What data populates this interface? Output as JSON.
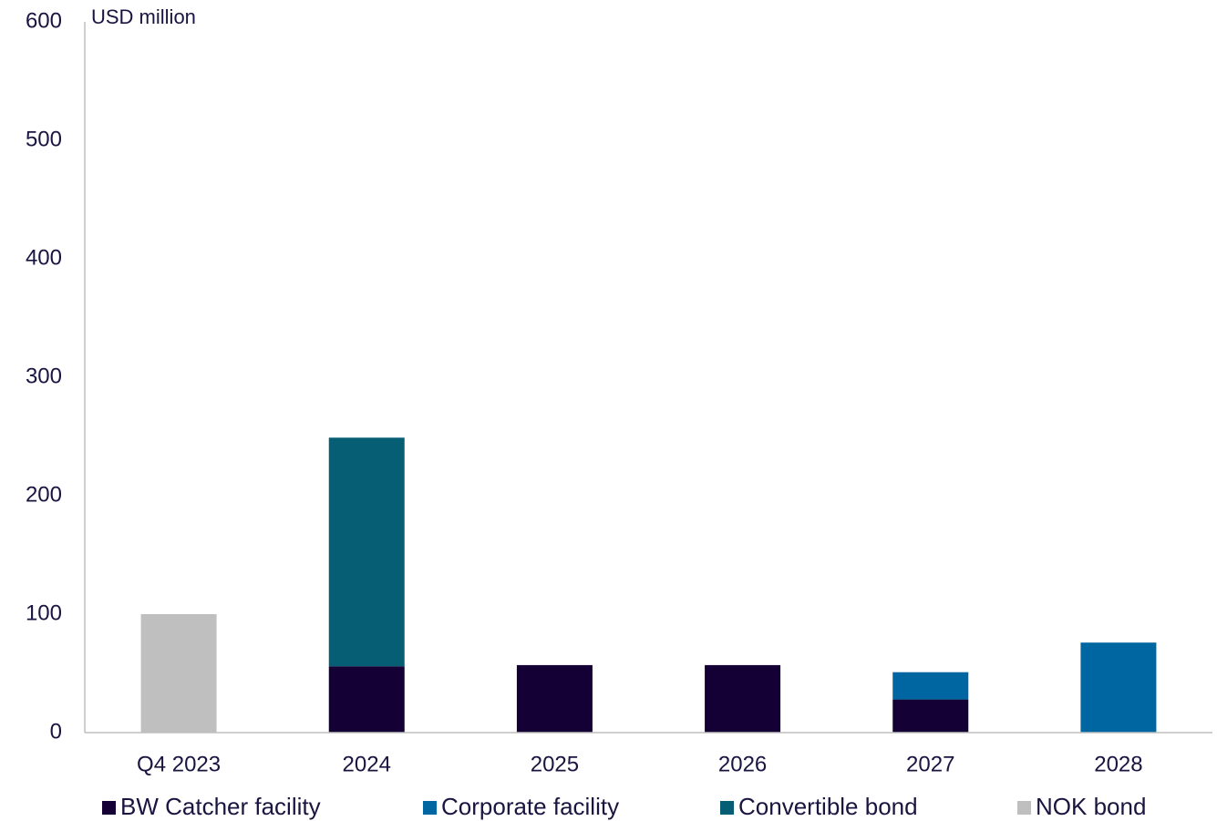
{
  "chart_data": {
    "type": "stacked_bar",
    "y_label": "USD million",
    "categories": [
      "Q4 2023",
      "2024",
      "2025",
      "2026",
      "2027",
      "2028"
    ],
    "series": [
      {
        "name": "BW Catcher facility",
        "color": "#150035",
        "values": [
          null,
          56,
          57,
          57,
          28,
          null
        ]
      },
      {
        "name": "Corporate facility",
        "color": "#0066a1",
        "values": [
          null,
          null,
          null,
          null,
          23,
          76
        ]
      },
      {
        "name": "Convertible bond",
        "color": "#065e74",
        "values": [
          null,
          193,
          null,
          null,
          null,
          null
        ]
      },
      {
        "name": "NOK bond",
        "color": "#bfbfbf",
        "values": [
          100,
          null,
          null,
          null,
          null,
          null
        ]
      }
    ],
    "ylim": [
      0,
      600
    ],
    "yticks": [
      0,
      100,
      200,
      300,
      400,
      500,
      600
    ],
    "grid": false,
    "legend": "bottom"
  }
}
